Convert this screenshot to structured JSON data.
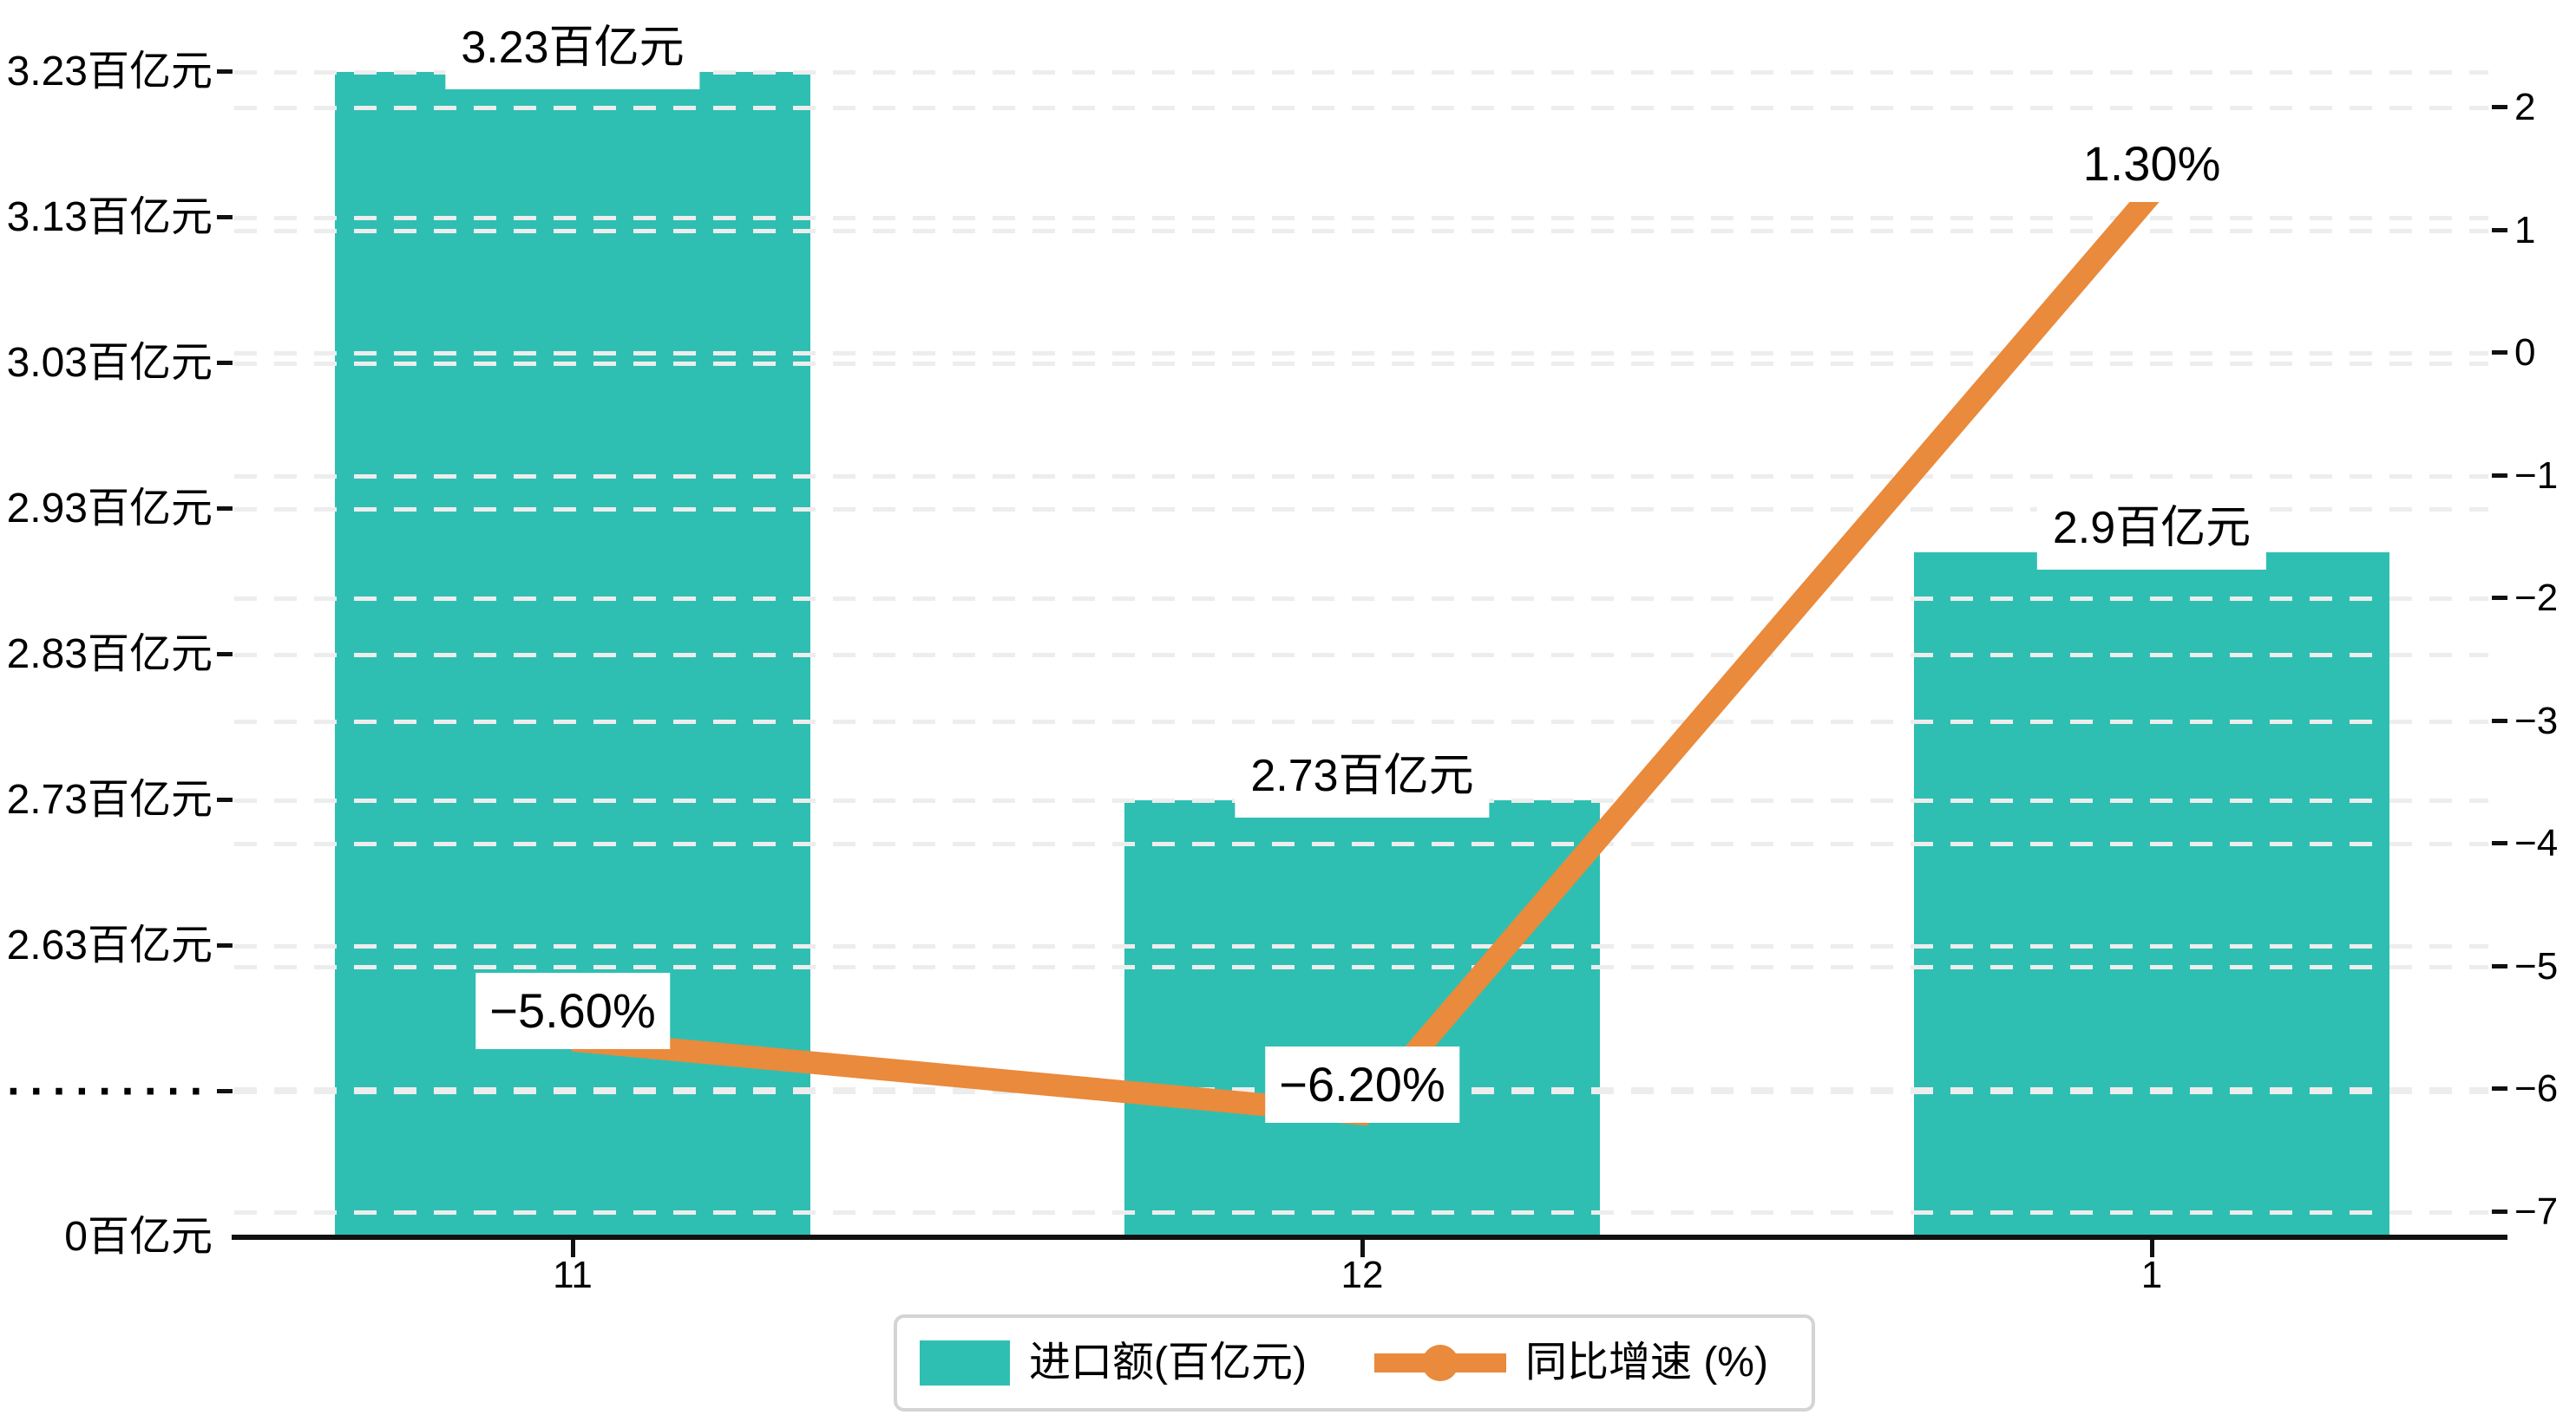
{
  "chart_data": {
    "type": "bar+line combo",
    "categories": [
      "11",
      "12",
      "1"
    ],
    "series": [
      {
        "name": "进口额(百亿元)",
        "type": "bar",
        "color": "#2fbfb2",
        "values": [
          3.23,
          2.73,
          2.9
        ],
        "data_labels": [
          "3.23百亿元",
          "2.73百亿元",
          "2.9百亿元"
        ]
      },
      {
        "name": "同比增速 (%)",
        "type": "line",
        "color": "#e98a3c",
        "values": [
          -5.6,
          -6.2,
          1.3
        ],
        "data_labels": [
          "−5.60%",
          "−6.20%",
          "1.30%"
        ]
      }
    ],
    "left_axis": {
      "unit": "百亿元",
      "tick_labels": [
        "3.23百亿元",
        "3.13百亿元",
        "3.03百亿元",
        "2.93百亿元",
        "2.83百亿元",
        "2.73百亿元",
        "2.63百亿元",
        "·········",
        "0百亿元"
      ],
      "tick_values": [
        3.23,
        3.13,
        3.03,
        2.93,
        2.83,
        2.73,
        2.63,
        null,
        0
      ],
      "break_label": "·········"
    },
    "right_axis": {
      "tick_labels": [
        "2",
        "1",
        "0",
        "−1",
        "−2",
        "−3",
        "−4",
        "−5",
        "−6",
        "−7"
      ],
      "max": 2,
      "min": -7
    },
    "x_axis": {
      "tick_labels": [
        "11",
        "12",
        "1"
      ]
    },
    "legend": {
      "items": [
        {
          "label": "进口额(百亿元)",
          "marker": "bar-swatch"
        },
        {
          "label": "同比增速 (%)",
          "marker": "line-dot"
        }
      ]
    },
    "grid": {
      "style": "dashed-horizontal",
      "left_grid_color": "#f1f1f1",
      "right_grid_color": "#e7e7e7"
    },
    "colors": {
      "bar": "#2fbfb2",
      "line": "#e98a3c",
      "axis": "#111111",
      "label_text": "#000000",
      "label_bg": "#ffffff",
      "legend_border": "#d4d4d4"
    }
  }
}
